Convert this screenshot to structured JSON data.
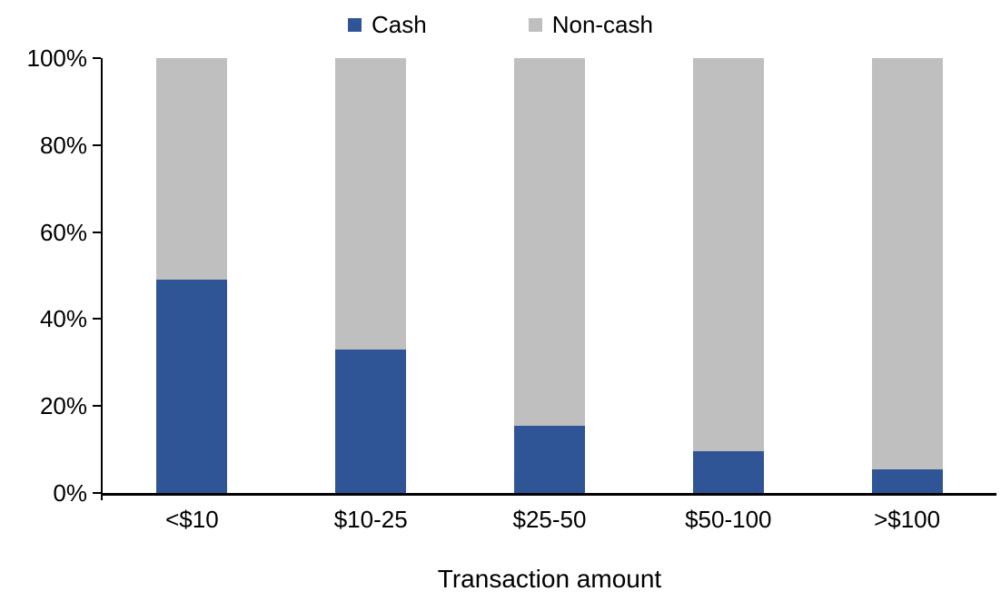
{
  "chart_data": {
    "type": "bar",
    "stacked": true,
    "percent_stacked": true,
    "title": "",
    "xlabel": "Transaction amount",
    "ylabel": "",
    "categories": [
      "<$10",
      "$10-25",
      "$25-50",
      "$50-100",
      ">$100"
    ],
    "series": [
      {
        "name": "Cash",
        "color": "#2F5597",
        "values": [
          49,
          33,
          15.5,
          9.5,
          5.5
        ]
      },
      {
        "name": "Non-cash",
        "color": "#BFBFBF",
        "values": [
          51,
          67,
          84.5,
          90.5,
          94.5
        ]
      }
    ],
    "ylim": [
      0,
      100
    ],
    "yticks": [
      {
        "label": "0%",
        "value": 0
      },
      {
        "label": "20%",
        "value": 20
      },
      {
        "label": "40%",
        "value": 40
      },
      {
        "label": "60%",
        "value": 60
      },
      {
        "label": "80%",
        "value": 80
      },
      {
        "label": "100%",
        "value": 100
      }
    ],
    "grid": false,
    "legend_position": "top"
  },
  "styles": {
    "axis_color": "#000000",
    "background": "#FFFFFF",
    "text_color": "#000000"
  }
}
